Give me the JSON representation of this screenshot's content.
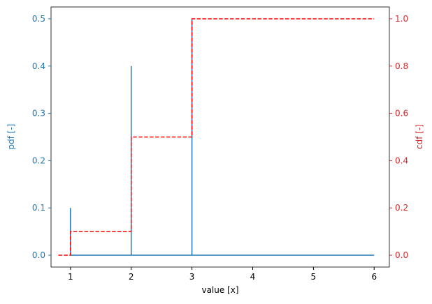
{
  "chart_data": {
    "type": "line",
    "x_label": "value [x]",
    "y_label": "pdf [-]",
    "y2_label": "cdf [-]",
    "y_color": "#1f77b4",
    "y2_color": "#d62728",
    "xlim": [
      0.68,
      6.25
    ],
    "xticks": [
      1,
      2,
      3,
      4,
      5,
      6
    ],
    "ylim": [
      -0.025,
      0.525
    ],
    "yticks": [
      {
        "value": 0,
        "label": "0.0"
      },
      0.1,
      0.2,
      0.3,
      0.4,
      0.5
    ],
    "y2lim": [
      -0.05,
      1.05
    ],
    "y2ticks": [
      {
        "value": 0,
        "label": "0.0"
      },
      0.2,
      0.4,
      0.6,
      0.8,
      {
        "value": 1,
        "label": "1.0"
      }
    ],
    "series": [
      {
        "color": "#1f77b4",
        "dashed": false,
        "x": [
          1,
          1,
          2,
          2,
          2,
          3,
          3,
          3,
          6
        ],
        "values": [
          0.1,
          0,
          0,
          0.4,
          0,
          0,
          0.5,
          0,
          0
        ]
      },
      {
        "color": "#ff0000",
        "dashed": true,
        "axis": "y2",
        "x": [
          0.8,
          1,
          1,
          2,
          2,
          3,
          3,
          6
        ],
        "values": [
          0,
          0,
          0.1,
          0.1,
          0.5,
          0.5,
          1,
          1
        ]
      }
    ]
  }
}
